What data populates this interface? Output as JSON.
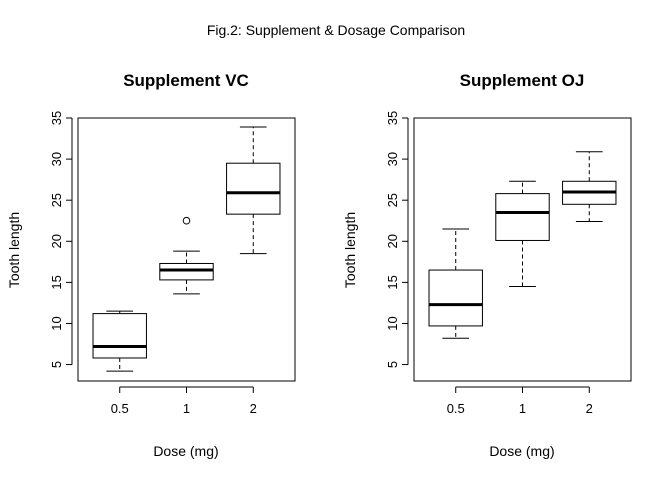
{
  "figure": {
    "title": "Fig.2: Supplement & Dosage Comparison"
  },
  "chart_data": [
    {
      "type": "boxplot",
      "title": "Supplement VC",
      "xlabel": "Dose (mg)",
      "ylabel": "Tooth length",
      "categories": [
        "0.5",
        "1",
        "2"
      ],
      "ylim": [
        3,
        35
      ],
      "yticks": [
        5,
        10,
        15,
        20,
        25,
        30,
        35
      ],
      "boxes": [
        {
          "min": 4.2,
          "q1": 5.8,
          "median": 7.2,
          "q3": 11.2,
          "max": 11.5,
          "outliers": []
        },
        {
          "min": 13.6,
          "q1": 15.3,
          "median": 16.5,
          "q3": 17.3,
          "max": 18.8,
          "outliers": [
            22.5
          ]
        },
        {
          "min": 18.5,
          "q1": 23.3,
          "median": 25.9,
          "q3": 29.5,
          "max": 33.9,
          "outliers": []
        }
      ]
    },
    {
      "type": "boxplot",
      "title": "Supplement OJ",
      "xlabel": "Dose (mg)",
      "ylabel": "Tooth length",
      "categories": [
        "0.5",
        "1",
        "2"
      ],
      "ylim": [
        3,
        35
      ],
      "yticks": [
        5,
        10,
        15,
        20,
        25,
        30,
        35
      ],
      "boxes": [
        {
          "min": 8.2,
          "q1": 9.7,
          "median": 12.3,
          "q3": 16.5,
          "max": 21.5,
          "outliers": []
        },
        {
          "min": 14.5,
          "q1": 20.1,
          "median": 23.5,
          "q3": 25.8,
          "max": 27.3,
          "outliers": []
        },
        {
          "min": 22.4,
          "q1": 24.5,
          "median": 26.0,
          "q3": 27.3,
          "max": 30.9,
          "outliers": []
        }
      ]
    }
  ]
}
